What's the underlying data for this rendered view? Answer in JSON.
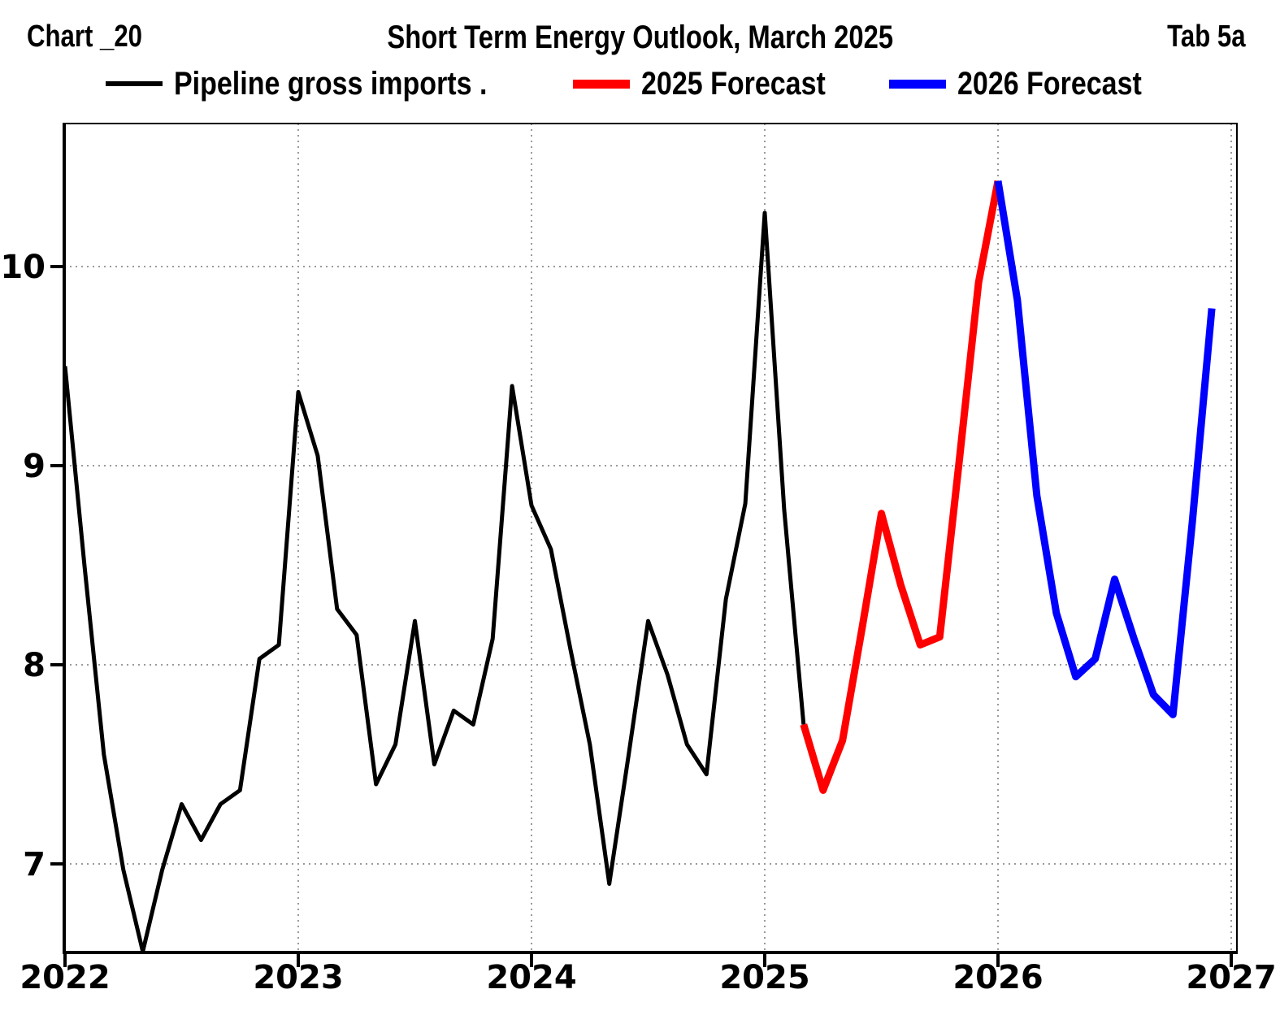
{
  "header": {
    "left": "Chart _20",
    "title": "Short Term Energy Outlook, March 2025",
    "right": "Tab 5a"
  },
  "legend": {
    "position": "top"
  },
  "chart_data": {
    "type": "line",
    "title": "Short Term Energy Outlook, March 2025",
    "xlabel": "",
    "ylabel": "",
    "x_axis": {
      "tick_labels": [
        "2022",
        "2023",
        "2024",
        "2025",
        "2026",
        "2027"
      ],
      "unit": "month",
      "months_per_tick": 12
    },
    "y_axis": {
      "tick_labels": [
        "7",
        "8",
        "9",
        "10"
      ],
      "tick_values": [
        7,
        8,
        9,
        10
      ],
      "range": [
        6.56,
        10.72
      ]
    },
    "x_range_months": [
      0,
      60.3
    ],
    "grid": {
      "style": "dotted",
      "color": "#9a9a9a",
      "horizontal_at": [
        7,
        8,
        9,
        10
      ],
      "vertical_every_months": 12
    },
    "series": [
      {
        "name": "Pipeline gross imports .",
        "color": "#000000",
        "line_width": 5,
        "start_month": "2022-01",
        "start_index": 0,
        "values": [
          9.5,
          8.5,
          7.55,
          6.97,
          6.56,
          6.97,
          7.3,
          7.12,
          7.3,
          7.37,
          8.03,
          8.1,
          9.37,
          9.05,
          8.28,
          8.15,
          7.4,
          7.6,
          8.22,
          7.5,
          7.77,
          7.7,
          8.13,
          9.4,
          8.8,
          8.58,
          8.08,
          7.6,
          6.9,
          7.55,
          8.22,
          7.95,
          7.6,
          7.45,
          8.33,
          8.81,
          10.27,
          8.78,
          7.7
        ]
      },
      {
        "name": "2025 Forecast",
        "color": "#ff0000",
        "line_width": 9,
        "start_month": "2025-03",
        "start_index": 38,
        "values": [
          7.7,
          7.37,
          7.62,
          8.18,
          8.76,
          8.4,
          8.1,
          8.14,
          9.02,
          9.92,
          10.43
        ]
      },
      {
        "name": "2026 Forecast",
        "color": "#0000ff",
        "line_width": 9,
        "start_month": "2026-01",
        "start_index": 48,
        "values": [
          10.43,
          9.83,
          8.85,
          8.26,
          7.94,
          8.03,
          8.43,
          8.13,
          7.85,
          7.75,
          8.72,
          9.79
        ]
      }
    ]
  }
}
